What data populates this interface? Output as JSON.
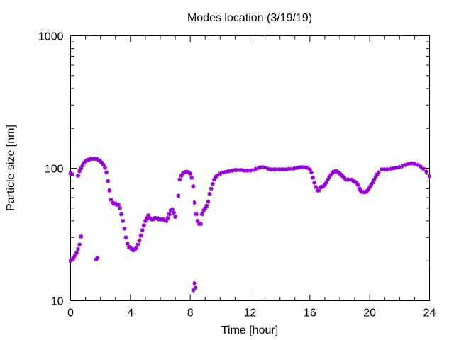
{
  "chart_data": {
    "type": "scatter",
    "title": "Modes location (3/19/19)",
    "xlabel": "Time [hour]",
    "ylabel": "Particle size [nm]",
    "xlim": [
      0,
      24
    ],
    "ylim": [
      10,
      1000
    ],
    "yscale": "log",
    "grid": false,
    "x_ticks": [
      0,
      4,
      8,
      12,
      16,
      20,
      24
    ],
    "x_tick_labels": [
      "0",
      "4",
      "8",
      "12",
      "16",
      "20",
      "24"
    ],
    "y_ticks": [
      10,
      100,
      1000
    ],
    "y_tick_labels": [
      "10",
      "100",
      "1000"
    ],
    "marker_color": "#9400d3",
    "series": [
      {
        "points": [
          [
            0.0,
            92
          ],
          [
            0.1,
            90
          ],
          [
            0.5,
            88
          ],
          [
            0.6,
            95
          ],
          [
            0.7,
            100
          ],
          [
            0.8,
            105
          ],
          [
            0.9,
            110
          ],
          [
            1.0,
            113
          ],
          [
            1.1,
            115
          ],
          [
            1.2,
            116
          ],
          [
            1.3,
            117
          ],
          [
            1.4,
            118
          ],
          [
            1.5,
            118
          ],
          [
            1.6,
            118
          ],
          [
            1.7,
            118
          ],
          [
            1.8,
            117
          ],
          [
            1.9,
            115
          ],
          [
            2.0,
            112
          ],
          [
            2.1,
            110
          ],
          [
            2.2,
            106
          ],
          [
            2.3,
            101
          ],
          [
            2.4,
            93
          ],
          [
            2.5,
            80
          ],
          [
            2.6,
            68
          ],
          [
            2.7,
            58
          ],
          [
            2.8,
            55
          ],
          [
            2.9,
            54
          ],
          [
            3.0,
            54
          ],
          [
            3.1,
            53
          ],
          [
            3.2,
            53
          ],
          [
            3.3,
            50
          ],
          [
            3.4,
            45
          ],
          [
            3.5,
            40
          ],
          [
            3.6,
            35
          ],
          [
            3.7,
            30
          ],
          [
            3.8,
            27
          ],
          [
            3.9,
            25.5
          ],
          [
            4.0,
            25
          ],
          [
            4.1,
            24.5
          ],
          [
            4.2,
            24
          ],
          [
            4.3,
            24.5
          ],
          [
            4.4,
            25
          ],
          [
            4.5,
            26.5
          ],
          [
            4.6,
            28.5
          ],
          [
            4.7,
            31
          ],
          [
            4.8,
            34
          ],
          [
            4.9,
            37
          ],
          [
            5.0,
            40
          ],
          [
            5.1,
            42
          ],
          [
            5.2,
            44
          ],
          [
            5.3,
            42
          ],
          [
            5.4,
            41
          ],
          [
            5.5,
            41
          ],
          [
            5.6,
            42
          ],
          [
            5.7,
            42
          ],
          [
            5.8,
            42
          ],
          [
            5.9,
            41
          ],
          [
            6.0,
            41
          ],
          [
            6.1,
            41
          ],
          [
            6.2,
            41
          ],
          [
            6.3,
            40.5
          ],
          [
            6.4,
            40
          ],
          [
            6.5,
            42
          ],
          [
            6.6,
            45
          ],
          [
            6.7,
            48
          ],
          [
            6.8,
            49
          ],
          [
            6.9,
            46
          ],
          [
            7.0,
            43
          ],
          [
            7.2,
            62
          ],
          [
            7.3,
            82
          ],
          [
            7.4,
            88
          ],
          [
            7.5,
            91
          ],
          [
            7.6,
            93
          ],
          [
            7.7,
            94
          ],
          [
            7.8,
            94
          ],
          [
            7.9,
            93
          ],
          [
            8.0,
            91
          ],
          [
            8.1,
            85
          ],
          [
            8.2,
            73
          ],
          [
            8.3,
            55
          ],
          [
            8.4,
            45
          ],
          [
            8.5,
            40
          ],
          [
            8.6,
            38
          ],
          [
            8.7,
            38
          ],
          [
            8.8,
            45
          ],
          [
            8.9,
            48
          ],
          [
            9.0,
            50
          ],
          [
            9.1,
            52
          ],
          [
            9.2,
            56
          ],
          [
            9.3,
            64
          ],
          [
            9.4,
            70
          ],
          [
            9.5,
            76
          ],
          [
            9.6,
            82
          ],
          [
            9.7,
            86
          ],
          [
            9.8,
            88
          ],
          [
            10.0,
            91
          ],
          [
            10.2,
            93
          ],
          [
            10.4,
            94
          ],
          [
            10.6,
            95
          ],
          [
            10.8,
            96
          ],
          [
            11.0,
            97
          ],
          [
            11.2,
            97
          ],
          [
            11.4,
            97
          ],
          [
            11.6,
            96
          ],
          [
            11.8,
            96
          ],
          [
            12.0,
            96
          ],
          [
            12.2,
            97
          ],
          [
            12.4,
            99
          ],
          [
            12.6,
            101
          ],
          [
            12.8,
            102
          ],
          [
            13.0,
            101
          ],
          [
            13.2,
            99
          ],
          [
            13.4,
            98
          ],
          [
            13.6,
            98
          ],
          [
            13.8,
            98
          ],
          [
            14.0,
            98
          ],
          [
            14.2,
            98
          ],
          [
            14.4,
            98
          ],
          [
            14.6,
            99
          ],
          [
            14.8,
            99
          ],
          [
            15.0,
            100
          ],
          [
            15.2,
            101
          ],
          [
            15.4,
            102
          ],
          [
            15.6,
            102
          ],
          [
            15.8,
            101
          ],
          [
            16.0,
            98
          ],
          [
            16.1,
            93
          ],
          [
            16.2,
            85
          ],
          [
            16.3,
            78
          ],
          [
            16.4,
            72
          ],
          [
            16.5,
            68
          ],
          [
            16.6,
            68
          ],
          [
            16.7,
            72
          ],
          [
            16.8,
            72
          ],
          [
            16.9,
            73
          ],
          [
            17.0,
            75
          ],
          [
            17.1,
            78
          ],
          [
            17.2,
            82
          ],
          [
            17.3,
            86
          ],
          [
            17.4,
            89
          ],
          [
            17.5,
            92
          ],
          [
            17.6,
            94
          ],
          [
            17.7,
            95
          ],
          [
            17.8,
            95
          ],
          [
            17.9,
            93
          ],
          [
            18.0,
            91
          ],
          [
            18.1,
            89
          ],
          [
            18.2,
            87
          ],
          [
            18.3,
            84
          ],
          [
            18.4,
            82
          ],
          [
            18.5,
            82
          ],
          [
            18.6,
            82
          ],
          [
            18.7,
            82
          ],
          [
            18.8,
            82
          ],
          [
            18.9,
            80
          ],
          [
            19.0,
            79
          ],
          [
            19.1,
            78
          ],
          [
            19.2,
            75
          ],
          [
            19.3,
            70
          ],
          [
            19.4,
            68
          ],
          [
            19.5,
            66
          ],
          [
            19.6,
            66
          ],
          [
            19.7,
            66
          ],
          [
            19.8,
            67
          ],
          [
            19.9,
            69
          ],
          [
            20.0,
            72
          ],
          [
            20.1,
            75
          ],
          [
            20.2,
            78
          ],
          [
            20.3,
            82
          ],
          [
            20.4,
            86
          ],
          [
            20.5,
            90
          ],
          [
            20.6,
            93
          ],
          [
            20.8,
            98
          ],
          [
            21.0,
            98
          ],
          [
            21.2,
            98
          ],
          [
            21.4,
            99
          ],
          [
            21.6,
            100
          ],
          [
            21.8,
            101
          ],
          [
            22.0,
            102
          ],
          [
            22.2,
            104
          ],
          [
            22.4,
            106
          ],
          [
            22.6,
            108
          ],
          [
            22.8,
            109
          ],
          [
            23.0,
            108
          ],
          [
            23.2,
            106
          ],
          [
            23.4,
            103
          ],
          [
            23.6,
            99
          ],
          [
            23.8,
            94
          ],
          [
            24.0,
            87
          ],
          [
            0.0,
            20
          ],
          [
            0.1,
            20.5
          ],
          [
            0.2,
            21
          ],
          [
            0.3,
            22
          ],
          [
            0.4,
            23
          ],
          [
            0.5,
            24.5
          ],
          [
            0.6,
            26.5
          ],
          [
            0.7,
            30.5
          ],
          [
            1.7,
            20.5
          ],
          [
            1.8,
            21
          ],
          [
            8.2,
            12
          ],
          [
            8.3,
            13.5
          ],
          [
            8.35,
            12.5
          ]
        ]
      }
    ]
  }
}
